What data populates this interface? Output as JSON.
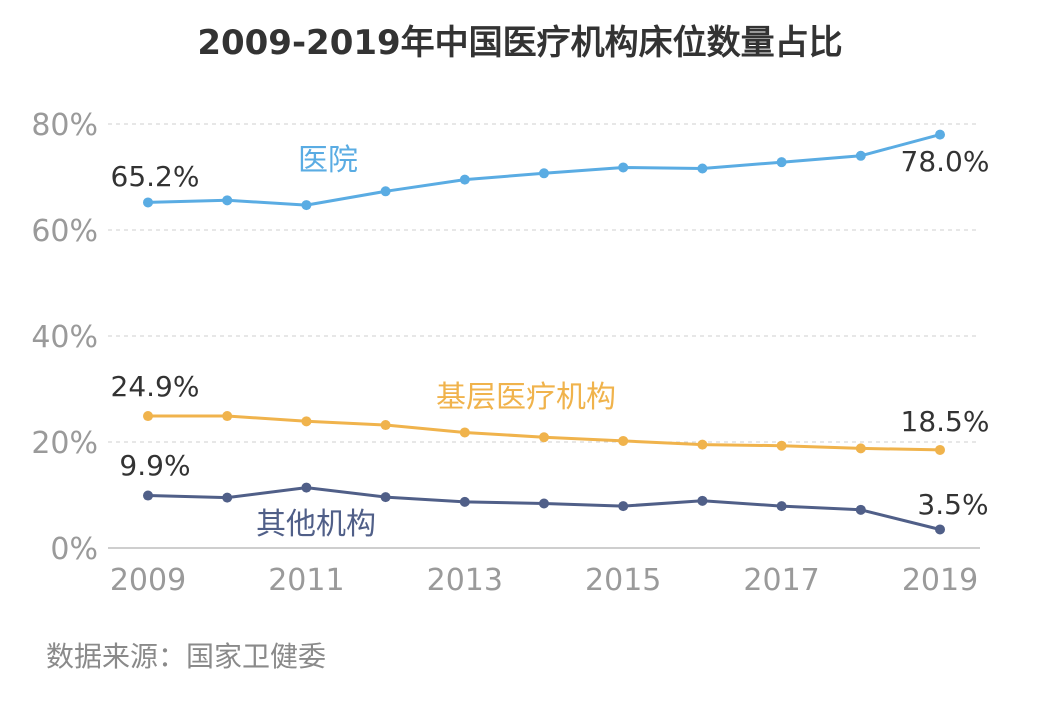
{
  "chart_data": {
    "type": "line",
    "title": "2009-2019年中国医疗机构床位数量占比",
    "xlabel": "",
    "ylabel": "",
    "x": [
      2009,
      2010,
      2011,
      2012,
      2013,
      2014,
      2015,
      2016,
      2017,
      2018,
      2019
    ],
    "x_tick_labels": [
      "2009",
      "2011",
      "2013",
      "2015",
      "2017",
      "2019"
    ],
    "x_tick_values": [
      2009,
      2011,
      2013,
      2015,
      2017,
      2019
    ],
    "y_tick_labels": [
      "0%",
      "20%",
      "40%",
      "60%",
      "80%"
    ],
    "y_tick_values": [
      0,
      20,
      40,
      60,
      80
    ],
    "ylim": [
      0,
      80
    ],
    "grid": true,
    "series": [
      {
        "name": "医院",
        "color": "#5aace3",
        "values": [
          65.2,
          65.6,
          64.7,
          67.3,
          69.5,
          70.7,
          71.8,
          71.6,
          72.8,
          74.0,
          78.0
        ],
        "start_label": "65.2%",
        "end_label": "78.0%"
      },
      {
        "name": "基层医疗机构",
        "color": "#f0b34c",
        "values": [
          24.9,
          24.9,
          23.9,
          23.2,
          21.8,
          20.9,
          20.2,
          19.5,
          19.3,
          18.8,
          18.5
        ],
        "start_label": "24.9%",
        "end_label": "18.5%"
      },
      {
        "name": "其他机构",
        "color": "#505f88",
        "values": [
          9.9,
          9.5,
          11.4,
          9.6,
          8.7,
          8.4,
          7.9,
          8.9,
          7.9,
          7.2,
          3.5
        ],
        "start_label": "9.9%",
        "end_label": "3.5%"
      }
    ]
  },
  "footer": {
    "source": "数据来源：国家卫健委"
  }
}
